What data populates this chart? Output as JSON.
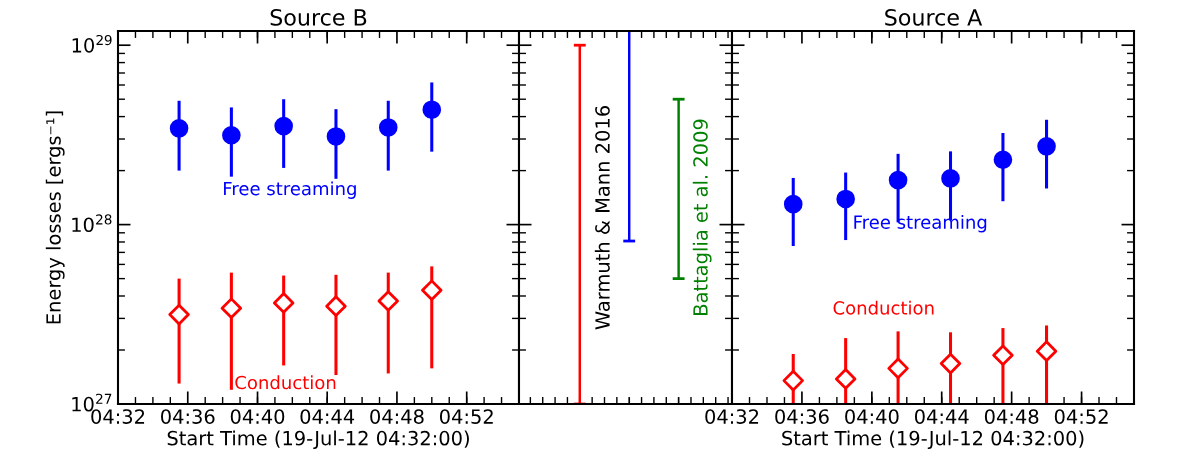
{
  "chart_data": [
    {
      "type": "scatter",
      "title": "Source B",
      "xlabel": "Start Time (19-Jul-12 04:32:00)",
      "ylabel": "Energy losses [ergs⁻¹]",
      "log": "y",
      "x": [
        4.5917,
        4.6417,
        4.6917,
        4.7417,
        4.7917,
        4.8333
      ],
      "xlim": [
        4.5333,
        4.9167
      ],
      "xticks": [
        {
          "value": 4.5333,
          "label": "04:32"
        },
        {
          "value": 4.6,
          "label": "04:36"
        },
        {
          "value": 4.6667,
          "label": "04:40"
        },
        {
          "value": 4.7333,
          "label": "04:44"
        },
        {
          "value": 4.8,
          "label": "04:48"
        },
        {
          "value": 4.8667,
          "label": "04:52"
        }
      ],
      "ylim": [
        1e+27,
        1.2e+29
      ],
      "yticks": [
        {
          "value": 1e+27,
          "label": "10$^{27}$"
        },
        {
          "value": 1e+28,
          "label": "10$^{28}$"
        },
        {
          "value": 1e+29,
          "label": "10$^{29}$"
        }
      ],
      "series": [
        {
          "name": "Free streaming",
          "color": "#0000ff",
          "marker": "circle",
          "values": [
            3.44e+28,
            3.15e+28,
            3.54e+28,
            3.1e+28,
            3.48e+28,
            4.37e+28
          ],
          "errors": [
            [
              2e+28,
              4.9e+28
            ],
            [
              1.85e+28,
              4.5e+28
            ],
            [
              2.07e+28,
              5e+28
            ],
            [
              1.8e+28,
              4.4e+28
            ],
            [
              2e+28,
              4.9e+28
            ],
            [
              2.55e+28,
              6.2e+28
            ]
          ]
        },
        {
          "name": "Conduction",
          "color": "#ff0000",
          "marker": "diamond",
          "values": [
            3.15e+27,
            3.42e+27,
            3.66e+27,
            3.51e+27,
            3.75e+27,
            4.31e+27
          ],
          "errors": [
            [
              1.3e+27,
              5e+27
            ],
            [
              1.2e+27,
              5.4e+27
            ],
            [
              1.64e+27,
              5.2e+27
            ],
            [
              1.45e+27,
              5.25e+27
            ],
            [
              1.48e+27,
              5.4e+27
            ],
            [
              1.58e+27,
              5.85e+27
            ]
          ]
        }
      ]
    },
    {
      "type": "bar",
      "log": "y",
      "tick_labels": false,
      "categories": [
        null,
        null,
        null
      ],
      "ylim": [
        1e+27,
        1.2e+29
      ],
      "yticks": [
        {
          "value": 1e+27,
          "label": null
        },
        {
          "value": 1e+28,
          "label": null
        },
        {
          "value": 1e+29,
          "label": null
        }
      ],
      "annotations": [
        "Warmuth & Mann 2016",
        "Battaglia et al. 2009"
      ],
      "colors": [
        "#ff0000",
        "#0000ff",
        "#008000"
      ],
      "values": [
        9.9e+28,
        1.119e+29,
        4.5e+28
      ],
      "base": [
        1e+27,
        8.1e+27,
        5e+27
      ]
    },
    {
      "type": "scatter",
      "title": "Source A",
      "xlabel": "Start Time (19-Jul-12 04:32:00)",
      "log": "y",
      "tick_labels": "x",
      "x": [
        4.5917,
        4.6417,
        4.6917,
        4.7417,
        4.7917,
        4.8333
      ],
      "xlim": [
        4.5333,
        4.9167
      ],
      "xticks": [
        {
          "value": 4.5333,
          "label": "04:32"
        },
        {
          "value": 4.6,
          "label": "04:36"
        },
        {
          "value": 4.6667,
          "label": "04:40"
        },
        {
          "value": 4.7333,
          "label": "04:44"
        },
        {
          "value": 4.8,
          "label": "04:48"
        },
        {
          "value": 4.8667,
          "label": "04:52"
        }
      ],
      "ylim": [
        1e+27,
        1.2e+29
      ],
      "yticks": [
        {
          "value": 1e+27,
          "label": null
        },
        {
          "value": 1e+28,
          "label": null
        },
        {
          "value": 1e+29,
          "label": null
        }
      ],
      "series": [
        {
          "name": "Free streaming",
          "color": "#0000ff",
          "marker": "circle",
          "values": [
            1.3e+28,
            1.39e+28,
            1.77e+28,
            1.81e+28,
            2.3e+28,
            2.73e+28
          ],
          "errors": [
            [
              7.6e+27,
              1.82e+28
            ],
            [
              8.2e+27,
              1.95e+28
            ],
            [
              1.03e+28,
              2.48e+28
            ],
            [
              1.06e+28,
              2.56e+28
            ],
            [
              1.35e+28,
              3.24e+28
            ],
            [
              1.59e+28,
              3.84e+28
            ]
          ]
        },
        {
          "name": "Conduction",
          "color": "#ff0000",
          "marker": "diamond",
          "values": [
            1.35e+27,
            1.38e+27,
            1.58e+27,
            1.68e+27,
            1.87e+27,
            1.97e+27
          ],
          "errors": [
            [
              1e+27,
              1.9e+27
            ],
            [
              1e+27,
              2.33e+27
            ],
            [
              1e+27,
              2.54e+27
            ],
            [
              1e+27,
              2.51e+27
            ],
            [
              1e+27,
              2.65e+27
            ],
            [
              1e+27,
              2.74e+27
            ]
          ]
        }
      ]
    }
  ]
}
